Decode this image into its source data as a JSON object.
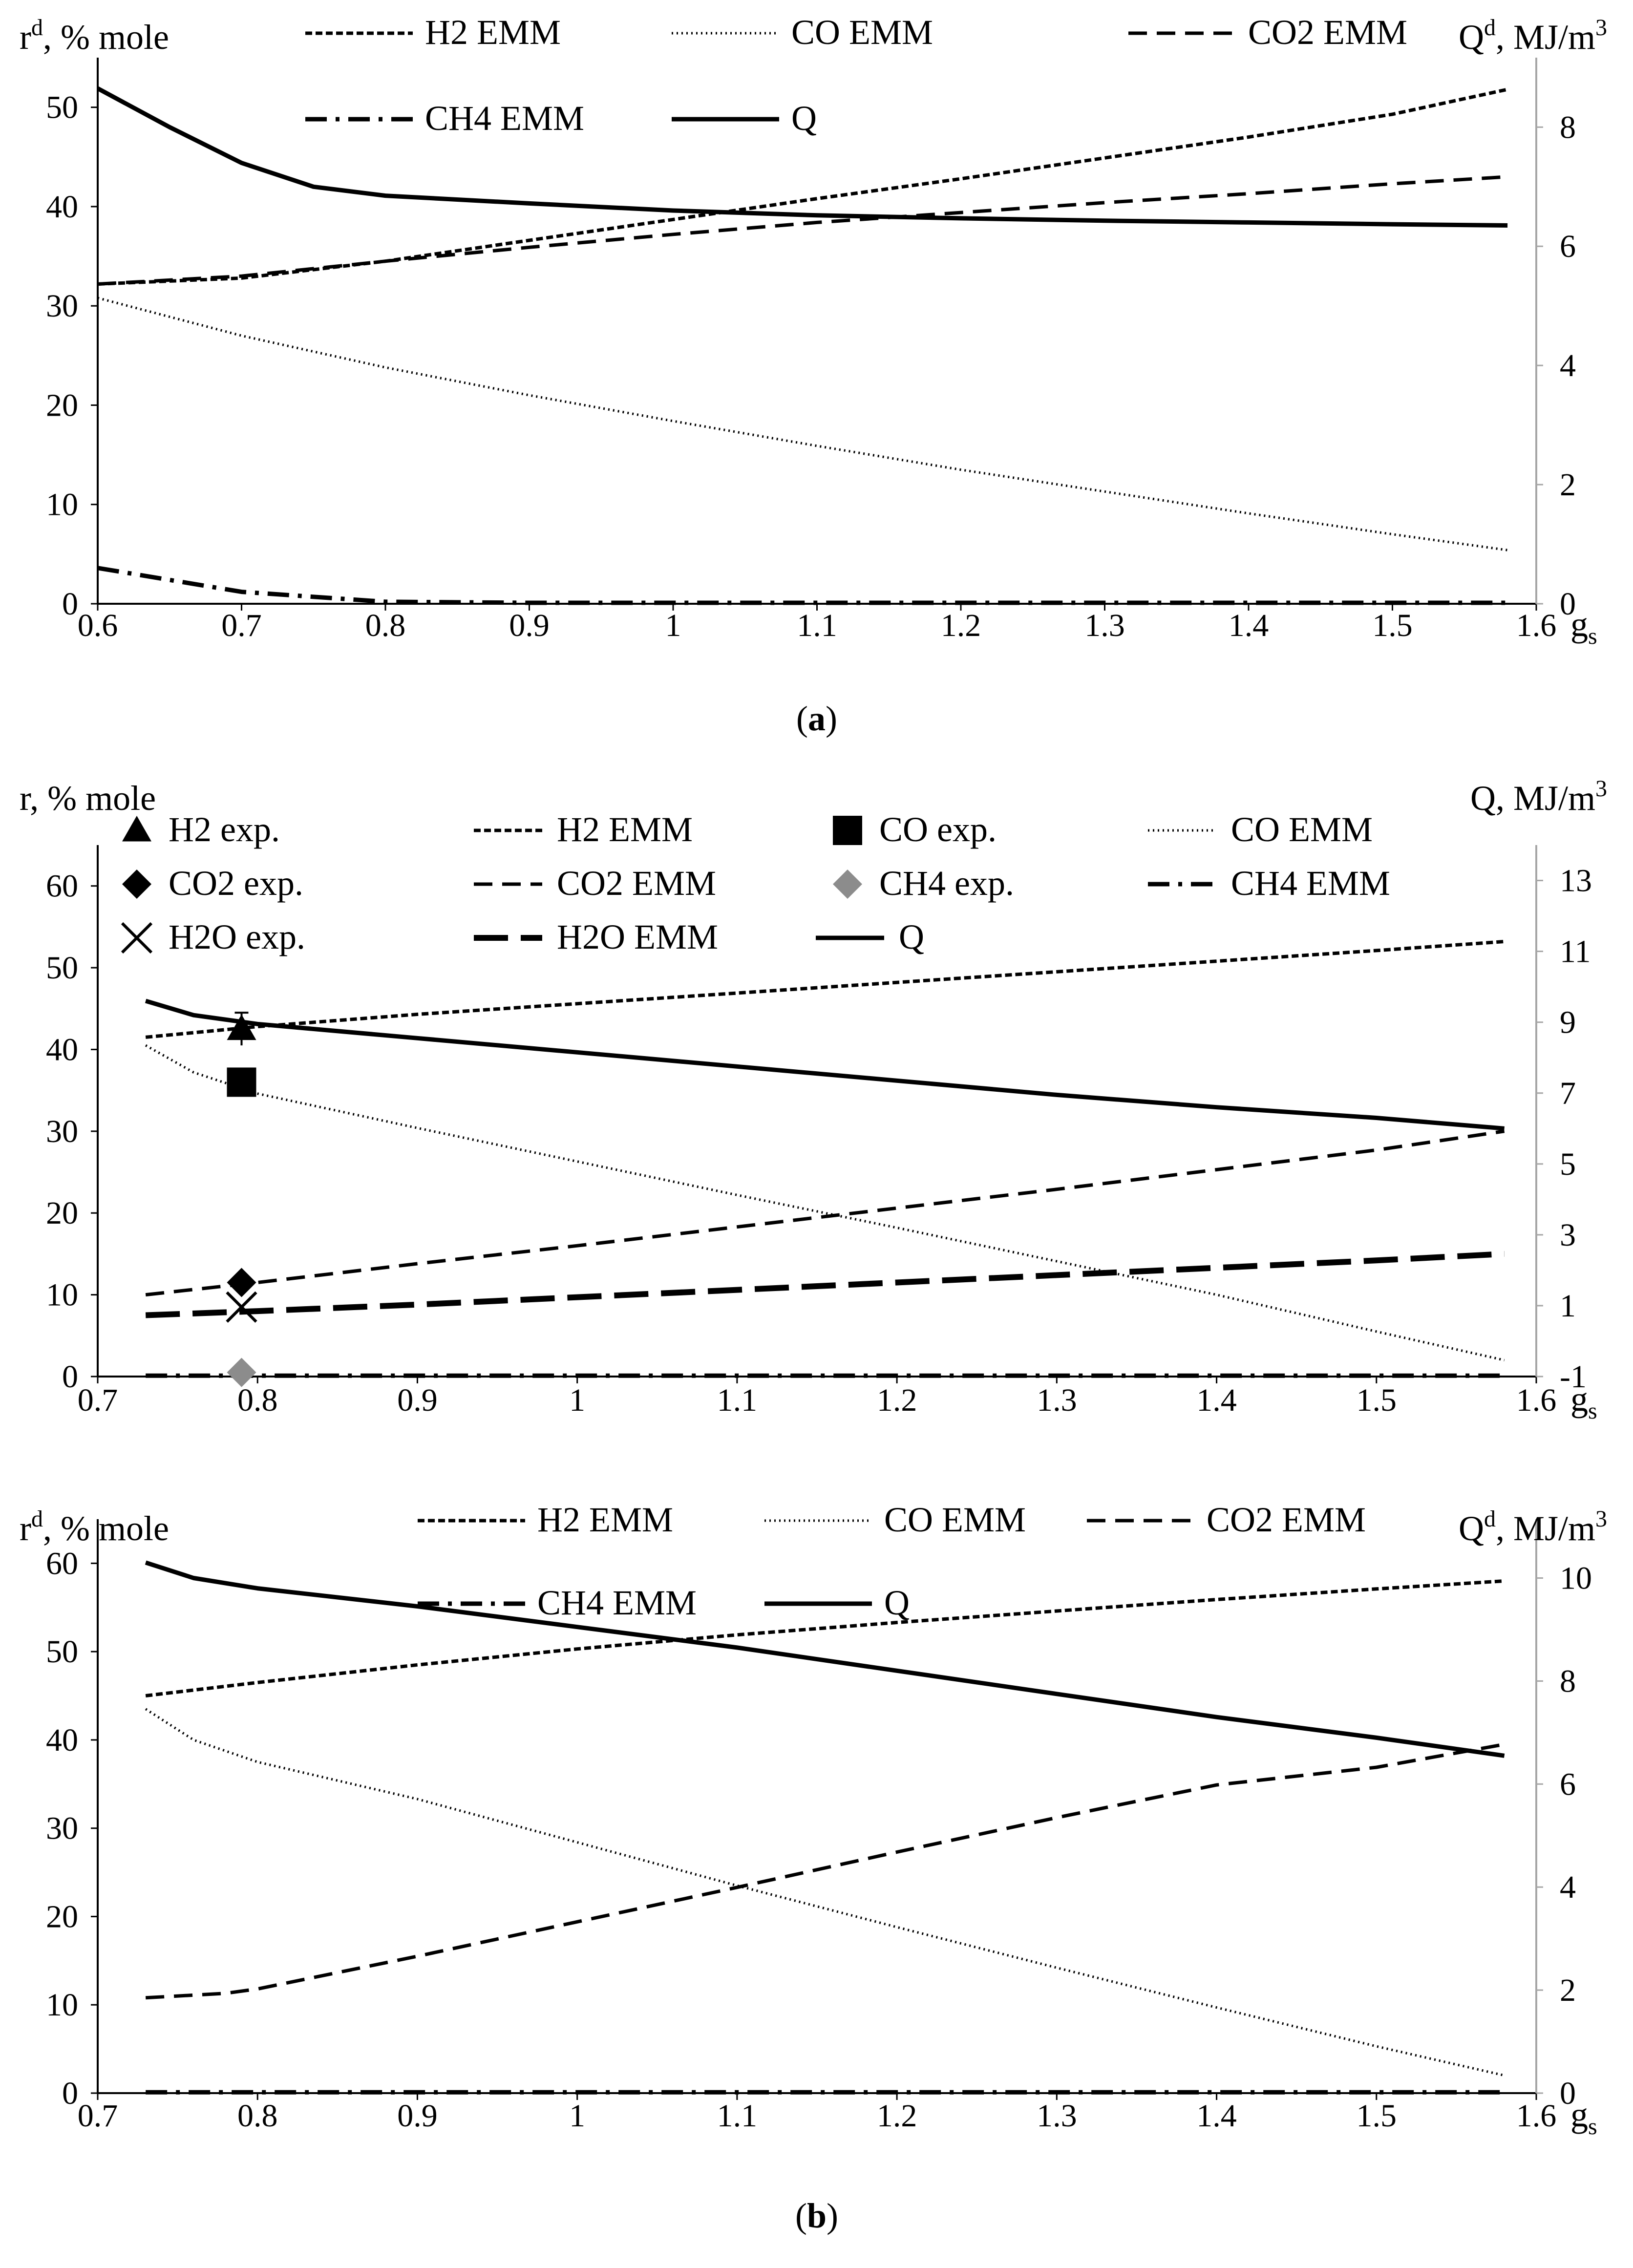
{
  "chart_data": [
    {
      "id": "a",
      "type": "line",
      "caption": "(a)",
      "caption_parts": [
        "(",
        "a",
        ")"
      ],
      "ylabel_left": {
        "base": "r",
        "sup": "d",
        "rest": ", % mole"
      },
      "ylabel_right": {
        "base": "Q",
        "sup": "d",
        "rest": ", MJ/m",
        "sup2": "3"
      },
      "xlabel": {
        "base": "g",
        "sub": "s"
      },
      "xlim": [
        0.6,
        1.6
      ],
      "ylim_left": [
        0,
        55
      ],
      "ylim_right": [
        0,
        9.1667
      ],
      "xticks": [
        0.6,
        0.7,
        0.8,
        0.9,
        1,
        1.1,
        1.2,
        1.3,
        1.4,
        1.5,
        1.6
      ],
      "yticks_left": [
        0,
        10,
        20,
        30,
        40,
        50
      ],
      "yticks_right": [
        0,
        2,
        4,
        6,
        8
      ],
      "legend": [
        {
          "label": "H2 EMM",
          "style": "H2"
        },
        {
          "label": "CO EMM",
          "style": "CO"
        },
        {
          "label": "CO2 EMM",
          "style": "CO2"
        },
        {
          "label": "CH4 EMM",
          "style": "CH4"
        },
        {
          "label": "Q",
          "style": "Q"
        }
      ],
      "series": [
        {
          "name": "H2 EMM",
          "style": "H2",
          "axis": "left",
          "x": [
            0.6,
            0.7,
            0.8,
            0.9,
            1.0,
            1.1,
            1.2,
            1.3,
            1.4,
            1.5,
            1.58
          ],
          "y": [
            32.2,
            32.8,
            34.5,
            36.6,
            38.7,
            40.8,
            42.8,
            44.9,
            47.0,
            49.3,
            51.8
          ]
        },
        {
          "name": "CO EMM",
          "style": "CO",
          "axis": "left",
          "x": [
            0.6,
            0.7,
            0.8,
            0.9,
            1.0,
            1.1,
            1.2,
            1.3,
            1.4,
            1.5,
            1.58
          ],
          "y": [
            30.8,
            27.0,
            23.8,
            21.0,
            18.4,
            15.9,
            13.5,
            11.3,
            9.1,
            7.0,
            5.4
          ]
        },
        {
          "name": "CO2 EMM",
          "style": "CO2",
          "axis": "left",
          "x": [
            0.6,
            0.7,
            0.8,
            0.9,
            1.0,
            1.1,
            1.2,
            1.3,
            1.4,
            1.5,
            1.58
          ],
          "y": [
            32.2,
            33.0,
            34.5,
            35.9,
            37.2,
            38.4,
            39.4,
            40.4,
            41.3,
            42.3,
            43.0
          ]
        },
        {
          "name": "CH4 EMM",
          "style": "CH4",
          "axis": "left",
          "x": [
            0.6,
            0.7,
            0.8,
            0.9,
            1.0,
            1.2,
            1.4,
            1.58
          ],
          "y": [
            3.6,
            1.2,
            0.2,
            0.1,
            0.1,
            0.1,
            0.1,
            0.1
          ]
        },
        {
          "name": "Q",
          "style": "Q",
          "axis": "right",
          "x": [
            0.6,
            0.65,
            0.7,
            0.75,
            0.8,
            0.9,
            1.0,
            1.1,
            1.2,
            1.3,
            1.4,
            1.5,
            1.58
          ],
          "y": [
            8.65,
            8.0,
            7.4,
            7.0,
            6.85,
            6.72,
            6.6,
            6.52,
            6.47,
            6.43,
            6.4,
            6.37,
            6.35
          ]
        }
      ]
    },
    {
      "id": "b1",
      "type": "line",
      "caption": "",
      "ylabel_left": {
        "base": "r",
        "sup": "",
        "rest": ", % mole"
      },
      "ylabel_right": {
        "base": "Q",
        "sup": "",
        "rest": ", MJ/m",
        "sup2": "3"
      },
      "xlabel": {
        "base": "g",
        "sub": "s"
      },
      "xlim": [
        0.7,
        1.6
      ],
      "ylim_left": [
        0,
        65
      ],
      "ylim_right": [
        -1,
        14
      ],
      "xticks": [
        0.7,
        0.8,
        0.9,
        1,
        1.1,
        1.2,
        1.3,
        1.4,
        1.5,
        1.6
      ],
      "yticks_left": [
        0,
        10,
        20,
        30,
        40,
        50,
        60
      ],
      "yticks_right": [
        -1,
        1,
        3,
        5,
        7,
        9,
        11,
        13
      ],
      "legend": [
        {
          "label": "H2 exp.",
          "style": "tri"
        },
        {
          "label": "H2 EMM",
          "style": "H2"
        },
        {
          "label": "CO exp.",
          "style": "sq"
        },
        {
          "label": "CO EMM",
          "style": "CO"
        },
        {
          "label": "CO2 exp.",
          "style": "dia"
        },
        {
          "label": "CO2 EMM",
          "style": "CO2"
        },
        {
          "label": "CH4 exp.",
          "style": "diag"
        },
        {
          "label": "CH4 EMM",
          "style": "CH4"
        },
        {
          "label": "H2O exp.",
          "style": "x"
        },
        {
          "label": "H2O EMM",
          "style": "H2O"
        },
        {
          "label": "Q",
          "style": "Q"
        }
      ],
      "series": [
        {
          "name": "H2 EMM",
          "style": "H2",
          "axis": "left",
          "x": [
            0.73,
            0.8,
            0.9,
            1.0,
            1.1,
            1.2,
            1.3,
            1.4,
            1.5,
            1.58
          ],
          "y": [
            41.5,
            42.8,
            44.3,
            45.6,
            46.9,
            48.2,
            49.5,
            50.8,
            52.1,
            53.2
          ]
        },
        {
          "name": "CO EMM",
          "style": "CO",
          "axis": "left",
          "x": [
            0.73,
            0.76,
            0.8,
            0.9,
            1.0,
            1.1,
            1.2,
            1.3,
            1.4,
            1.5,
            1.58
          ],
          "y": [
            40.5,
            37.2,
            34.6,
            30.4,
            26.3,
            22.2,
            18.2,
            14.1,
            10.0,
            5.5,
            2.0
          ]
        },
        {
          "name": "CO2 EMM",
          "style": "CO2",
          "axis": "left",
          "x": [
            0.73,
            0.8,
            0.9,
            1.0,
            1.1,
            1.2,
            1.3,
            1.4,
            1.5,
            1.58
          ],
          "y": [
            10.0,
            11.5,
            13.8,
            16.0,
            18.3,
            20.6,
            22.9,
            25.3,
            27.7,
            30.0
          ]
        },
        {
          "name": "CH4 EMM",
          "style": "CH4",
          "axis": "left",
          "x": [
            0.73,
            1.0,
            1.3,
            1.58
          ],
          "y": [
            0.1,
            0.1,
            0.1,
            0.1
          ]
        },
        {
          "name": "H2O EMM",
          "style": "H2O",
          "axis": "left",
          "x": [
            0.73,
            0.8,
            0.9,
            1.0,
            1.1,
            1.2,
            1.3,
            1.4,
            1.5,
            1.58
          ],
          "y": [
            7.5,
            8.0,
            8.8,
            9.7,
            10.6,
            11.5,
            12.4,
            13.3,
            14.2,
            15.0
          ]
        },
        {
          "name": "Q",
          "style": "Q",
          "axis": "right",
          "x": [
            0.73,
            0.76,
            0.8,
            0.9,
            1.0,
            1.1,
            1.2,
            1.3,
            1.4,
            1.5,
            1.58
          ],
          "y": [
            9.6,
            9.2,
            8.95,
            8.55,
            8.15,
            7.75,
            7.35,
            6.95,
            6.6,
            6.3,
            6.0
          ]
        }
      ],
      "points": [
        {
          "name": "H2 exp.",
          "style": "tri",
          "x": 0.79,
          "y": 42.5,
          "err": 2.0
        },
        {
          "name": "CO exp.",
          "style": "sq",
          "x": 0.79,
          "y": 36.0
        },
        {
          "name": "CO2 exp.",
          "style": "dia",
          "x": 0.79,
          "y": 11.5
        },
        {
          "name": "CH4 exp.",
          "style": "diag",
          "x": 0.79,
          "y": 0.5
        },
        {
          "name": "H2O exp.",
          "style": "x",
          "x": 0.79,
          "y": 8.5
        }
      ]
    },
    {
      "id": "b2",
      "type": "line",
      "caption": "(b)",
      "caption_parts": [
        "(",
        "b",
        ")"
      ],
      "ylabel_left": {
        "base": "r",
        "sup": "d",
        "rest": ", % mole"
      },
      "ylabel_right": {
        "base": "Q",
        "sup": "d",
        "rest": ", MJ/m",
        "sup2": "3"
      },
      "xlabel": {
        "base": "g",
        "sub": "s"
      },
      "xlim": [
        0.7,
        1.6
      ],
      "ylim_left": [
        0,
        65
      ],
      "ylim_right": [
        0,
        11.1429
      ],
      "xticks": [
        0.7,
        0.8,
        0.9,
        1,
        1.1,
        1.2,
        1.3,
        1.4,
        1.5,
        1.6
      ],
      "yticks_left": [
        0,
        10,
        20,
        30,
        40,
        50,
        60
      ],
      "yticks_right": [
        0,
        2,
        4,
        6,
        8,
        10
      ],
      "legend": [
        {
          "label": "H2 EMM",
          "style": "H2"
        },
        {
          "label": "CO EMM",
          "style": "CO"
        },
        {
          "label": "CO2 EMM",
          "style": "CO2"
        },
        {
          "label": "CH4 EMM",
          "style": "CH4"
        },
        {
          "label": "Q",
          "style": "Q"
        }
      ],
      "series": [
        {
          "name": "H2 EMM",
          "style": "H2",
          "axis": "left",
          "x": [
            0.73,
            0.8,
            0.9,
            1.0,
            1.1,
            1.2,
            1.3,
            1.4,
            1.5,
            1.58
          ],
          "y": [
            45.0,
            46.5,
            48.5,
            50.3,
            51.9,
            53.3,
            54.6,
            55.9,
            57.1,
            58.0
          ]
        },
        {
          "name": "CO EMM",
          "style": "CO",
          "axis": "left",
          "x": [
            0.73,
            0.76,
            0.8,
            0.9,
            1.0,
            1.1,
            1.2,
            1.3,
            1.4,
            1.5,
            1.58
          ],
          "y": [
            43.5,
            40.0,
            37.5,
            33.3,
            28.4,
            23.5,
            18.8,
            14.2,
            9.7,
            5.3,
            2.0
          ]
        },
        {
          "name": "CO2 EMM",
          "style": "CO2",
          "axis": "left",
          "x": [
            0.73,
            0.78,
            0.8,
            0.9,
            1.0,
            1.1,
            1.2,
            1.3,
            1.4,
            1.5,
            1.58
          ],
          "y": [
            10.8,
            11.3,
            11.8,
            15.5,
            19.4,
            23.3,
            27.3,
            31.2,
            34.9,
            36.9,
            39.5
          ]
        },
        {
          "name": "CH4 EMM",
          "style": "CH4",
          "axis": "left",
          "x": [
            0.73,
            1.0,
            1.3,
            1.58
          ],
          "y": [
            0.1,
            0.1,
            0.1,
            0.1
          ]
        },
        {
          "name": "Q",
          "style": "Q",
          "axis": "right",
          "x": [
            0.73,
            0.76,
            0.8,
            0.9,
            1.0,
            1.1,
            1.2,
            1.3,
            1.4,
            1.5,
            1.58
          ],
          "y": [
            10.3,
            10.0,
            9.8,
            9.45,
            9.05,
            8.65,
            8.2,
            7.75,
            7.3,
            6.9,
            6.55
          ]
        }
      ]
    }
  ]
}
